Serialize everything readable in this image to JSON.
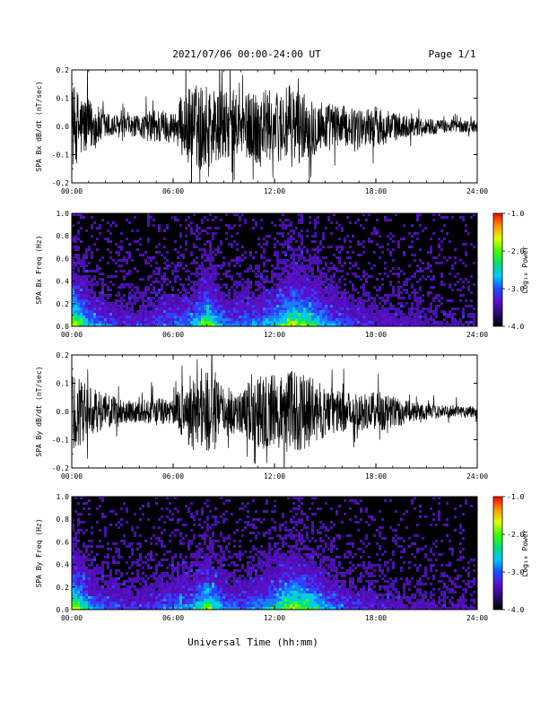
{
  "header": {
    "date_range": "2021/07/06  00:00-24:00 UT",
    "page": "Page 1/1"
  },
  "x_axis": {
    "label": "Universal Time (hh:mm)",
    "ticks": [
      "00:00",
      "06:00",
      "12:00",
      "18:00",
      "24:00"
    ]
  },
  "colorbar": {
    "label": "Log₁₀ Power",
    "ticks": [
      "-1.0",
      "-2.0",
      "-3.0",
      "-4.0"
    ],
    "colors": [
      "#000000",
      "#2b0a6e",
      "#5a10c8",
      "#1850ff",
      "#00c8ff",
      "#00e070",
      "#40ff00",
      "#e0ff00",
      "#ff9000",
      "#ff0000"
    ]
  },
  "chart_data": [
    {
      "type": "line",
      "ylabel": "SPA Bx dB/dt (nT/sec)",
      "xlim": [
        0,
        24
      ],
      "ylim": [
        -0.2,
        0.2
      ],
      "y_ticks": [
        "0.2",
        "0.1",
        "0.0",
        "-0.1",
        "-0.2"
      ],
      "envelope_hours": [
        0,
        1,
        2,
        3,
        4,
        5,
        6,
        7,
        8,
        9,
        10,
        11,
        12,
        13,
        14,
        15,
        16,
        17,
        18,
        19,
        20,
        21,
        22,
        23,
        24
      ],
      "envelope_amplitude": [
        0.2,
        0.13,
        0.07,
        0.05,
        0.05,
        0.09,
        0.07,
        0.2,
        0.2,
        0.17,
        0.13,
        0.2,
        0.16,
        0.2,
        0.15,
        0.12,
        0.1,
        0.08,
        0.1,
        0.07,
        0.05,
        0.04,
        0.03,
        0.03,
        0.03
      ],
      "line_color": "#000000"
    },
    {
      "type": "heatmap",
      "ylabel": "SPA Bx Freq (Hz)",
      "xlim": [
        0,
        24
      ],
      "ylim": [
        0,
        1.0
      ],
      "y_ticks": [
        "1.0",
        "0.8",
        "0.6",
        "0.4",
        "0.2",
        "0.0"
      ],
      "zlim": [
        -4.0,
        -1.0
      ],
      "z_label": "Log₁₀ Power"
    },
    {
      "type": "line",
      "ylabel": "SPA By dB/dt (nT/sec)",
      "xlim": [
        0,
        24
      ],
      "ylim": [
        -0.2,
        0.2
      ],
      "y_ticks": [
        "0.2",
        "0.1",
        "0.0",
        "-0.1",
        "-0.2"
      ],
      "envelope_hours": [
        0,
        1,
        2,
        3,
        4,
        5,
        6,
        7,
        8,
        9,
        10,
        11,
        12,
        13,
        14,
        15,
        16,
        17,
        18,
        19,
        20,
        21,
        22,
        23,
        24
      ],
      "envelope_amplitude": [
        0.2,
        0.12,
        0.08,
        0.06,
        0.05,
        0.07,
        0.06,
        0.18,
        0.2,
        0.12,
        0.1,
        0.17,
        0.18,
        0.2,
        0.17,
        0.12,
        0.1,
        0.09,
        0.1,
        0.08,
        0.05,
        0.04,
        0.03,
        0.03,
        0.03
      ],
      "line_color": "#000000"
    },
    {
      "type": "heatmap",
      "ylabel": "SPA By Freq (Hz)",
      "xlim": [
        0,
        24
      ],
      "ylim": [
        0,
        1.0
      ],
      "y_ticks": [
        "1.0",
        "0.8",
        "0.6",
        "0.4",
        "0.2",
        "0.0"
      ],
      "zlim": [
        -4.0,
        -1.0
      ],
      "z_label": "Log₁₀ Power"
    }
  ]
}
